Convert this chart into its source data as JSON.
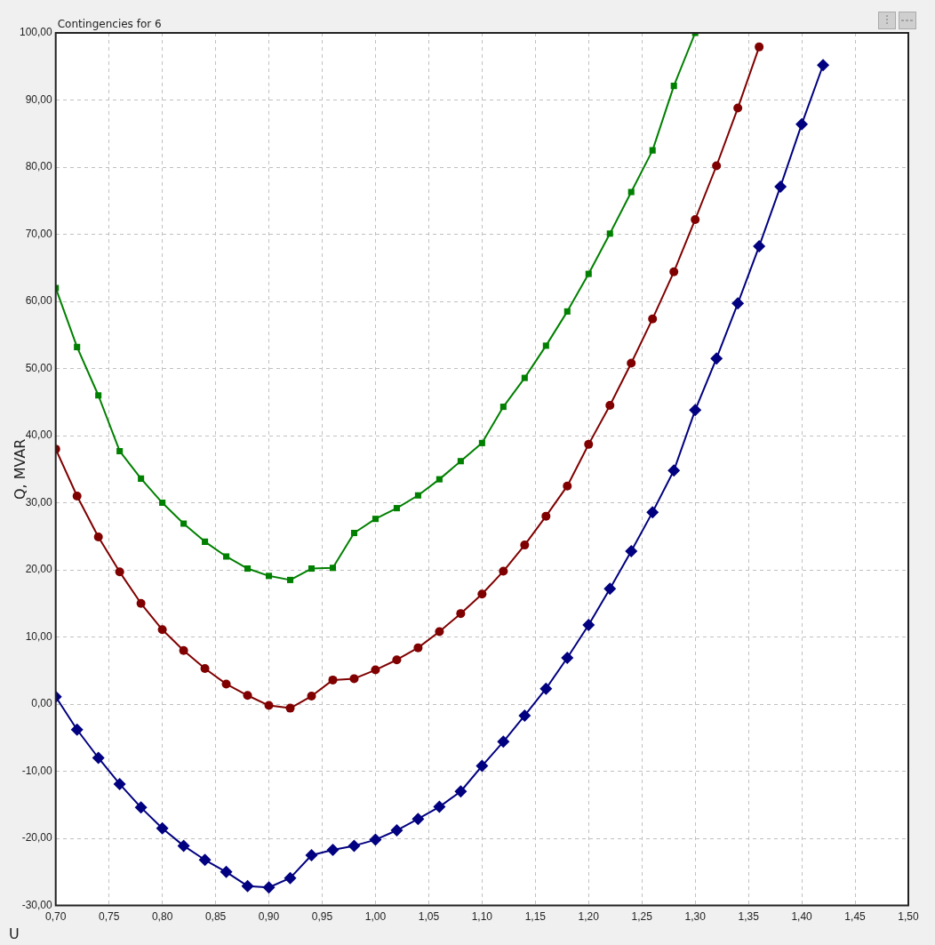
{
  "chart_data": {
    "type": "line",
    "title": "Contingencies for 6",
    "xlabel": "U",
    "ylabel": "Q, MVAR",
    "xlim": [
      0.7,
      1.5
    ],
    "xticks": [
      {
        "value": 0.7,
        "label": "0,70"
      },
      {
        "value": 0.75,
        "label": "0,75"
      },
      {
        "value": 0.8,
        "label": "0,80"
      },
      {
        "value": 0.85,
        "label": "0,85"
      },
      {
        "value": 0.9,
        "label": "0,90"
      },
      {
        "value": 0.95,
        "label": "0,95"
      },
      {
        "value": 1.0,
        "label": "1,00"
      },
      {
        "value": 1.05,
        "label": "1,05"
      },
      {
        "value": 1.1,
        "label": "1,10"
      },
      {
        "value": 1.15,
        "label": "1,15"
      },
      {
        "value": 1.2,
        "label": "1,20"
      },
      {
        "value": 1.25,
        "label": "1,25"
      },
      {
        "value": 1.3,
        "label": "1,30"
      },
      {
        "value": 1.35,
        "label": "1,35"
      },
      {
        "value": 1.4,
        "label": "1,40"
      },
      {
        "value": 1.45,
        "label": "1,45"
      },
      {
        "value": 1.5,
        "label": "1,50"
      }
    ],
    "ylim": [
      -30,
      100
    ],
    "yticks": [
      {
        "value": -30,
        "label": "-30,00"
      },
      {
        "value": -20,
        "label": "-20,00"
      },
      {
        "value": -10,
        "label": "-10,00"
      },
      {
        "value": 0,
        "label": "0,00"
      },
      {
        "value": 10,
        "label": "10,00"
      },
      {
        "value": 20,
        "label": "20,00"
      },
      {
        "value": 30,
        "label": "30,00"
      },
      {
        "value": 40,
        "label": "40,00"
      },
      {
        "value": 50,
        "label": "50,00"
      },
      {
        "value": 60,
        "label": "60,00"
      },
      {
        "value": 70,
        "label": "70,00"
      },
      {
        "value": 80,
        "label": "80,00"
      },
      {
        "value": 90,
        "label": "90,00"
      },
      {
        "value": 100,
        "label": "100,00"
      }
    ],
    "grid": true,
    "legend": false,
    "line_style": "solid",
    "series": [
      {
        "color": "#008000",
        "marker": "square",
        "x": [
          0.7,
          0.72,
          0.74,
          0.76,
          0.78,
          0.8,
          0.82,
          0.84,
          0.86,
          0.88,
          0.9,
          0.92,
          0.94,
          0.96,
          0.98,
          1.0,
          1.02,
          1.04,
          1.06,
          1.08,
          1.1,
          1.12,
          1.14,
          1.16,
          1.18,
          1.2,
          1.22,
          1.24,
          1.26,
          1.28,
          1.3
        ],
        "values": [
          62.0,
          53.2,
          46.0,
          37.7,
          33.6,
          30.0,
          26.9,
          24.2,
          22.0,
          20.2,
          19.1,
          18.5,
          20.2,
          20.3,
          25.5,
          27.6,
          29.2,
          31.1,
          33.5,
          36.2,
          38.9,
          44.3,
          48.6,
          53.4,
          58.5,
          64.1,
          70.1,
          76.3,
          82.5,
          92.1,
          100
        ]
      },
      {
        "color": "#800000",
        "marker": "circle",
        "x": [
          0.7,
          0.72,
          0.74,
          0.76,
          0.78,
          0.8,
          0.82,
          0.84,
          0.86,
          0.88,
          0.9,
          0.92,
          0.94,
          0.96,
          0.98,
          1.0,
          1.02,
          1.04,
          1.06,
          1.08,
          1.1,
          1.12,
          1.14,
          1.16,
          1.18,
          1.2,
          1.22,
          1.24,
          1.26,
          1.28,
          1.3,
          1.32,
          1.34,
          1.36
        ],
        "values": [
          38.0,
          31.0,
          24.9,
          19.7,
          15.0,
          11.1,
          8.0,
          5.3,
          3.0,
          1.3,
          -0.2,
          -0.6,
          1.2,
          3.6,
          3.8,
          5.1,
          6.6,
          8.4,
          10.8,
          13.5,
          16.4,
          19.8,
          23.7,
          28.0,
          32.5,
          38.7,
          44.5,
          50.8,
          57.4,
          64.4,
          72.2,
          80.2,
          88.8,
          97.9
        ]
      },
      {
        "color": "#000080",
        "marker": "diamond",
        "x": [
          0.7,
          0.72,
          0.74,
          0.76,
          0.78,
          0.8,
          0.82,
          0.84,
          0.86,
          0.88,
          0.9,
          0.92,
          0.94,
          0.96,
          0.98,
          1.0,
          1.02,
          1.04,
          1.06,
          1.08,
          1.1,
          1.12,
          1.14,
          1.16,
          1.18,
          1.2,
          1.22,
          1.24,
          1.26,
          1.28,
          1.3,
          1.32,
          1.34,
          1.36,
          1.38,
          1.4,
          1.42
        ],
        "values": [
          1.1,
          -3.8,
          -8.0,
          -11.9,
          -15.4,
          -18.5,
          -21.1,
          -23.2,
          -25.0,
          -27.1,
          -27.3,
          -25.9,
          -22.5,
          -21.7,
          -21.1,
          -20.2,
          -18.8,
          -17.1,
          -15.3,
          -13.0,
          -9.2,
          -5.6,
          -1.7,
          2.3,
          6.9,
          11.8,
          17.2,
          22.8,
          28.6,
          34.8,
          43.8,
          51.5,
          59.7,
          68.2,
          77.1,
          86.4,
          95.2
        ]
      }
    ]
  }
}
